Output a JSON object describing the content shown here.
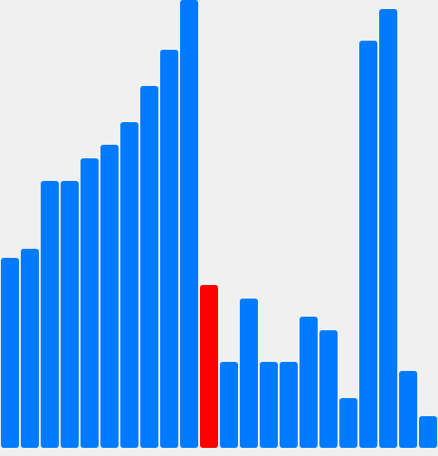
{
  "colors": {
    "background": "#f0f0f0",
    "bar_default": "#007bff",
    "bar_highlight": "#ff0000"
  },
  "chart_data": {
    "type": "bar",
    "title": "",
    "xlabel": "",
    "ylabel": "",
    "ylim": [
      0,
      495
    ],
    "grid": false,
    "legend": "none",
    "values": [
      210,
      220,
      295,
      295,
      320,
      335,
      360,
      400,
      440,
      495,
      180,
      95,
      165,
      95,
      95,
      145,
      130,
      55,
      450,
      485,
      85,
      35
    ],
    "highlight_index": 10
  }
}
